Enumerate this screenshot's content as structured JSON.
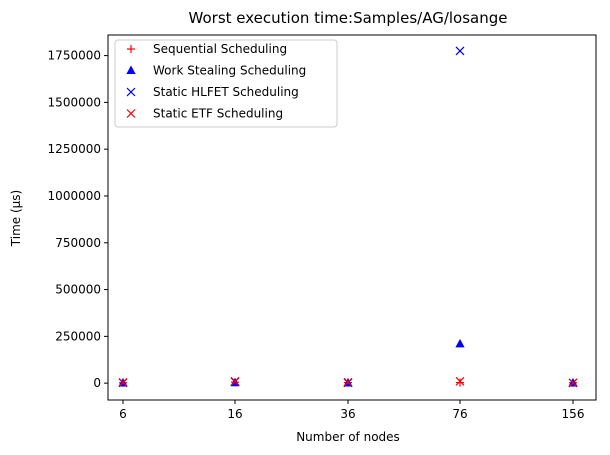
{
  "chart_data": {
    "type": "scatter",
    "title": "Worst execution time:Samples/AG/losange",
    "xlabel": "Number of nodes",
    "ylabel": "Time (µs)",
    "x_categories": [
      "6",
      "16",
      "36",
      "76",
      "156"
    ],
    "ylim": [
      -90000,
      1860000
    ],
    "yticks": [
      0,
      250000,
      500000,
      750000,
      1000000,
      1250000,
      1500000,
      1750000
    ],
    "ytick_labels": [
      "0",
      "250000",
      "500000",
      "750000",
      "1000000",
      "1250000",
      "1500000",
      "1750000"
    ],
    "grid": false,
    "legend_position": "top-left",
    "series": [
      {
        "name": "Sequential Scheduling",
        "marker": "plus",
        "color": "#ff0000",
        "values": [
          2000,
          5000,
          3000,
          3000,
          2000
        ]
      },
      {
        "name": "Work Stealing Scheduling",
        "marker": "triangle",
        "color": "#0000ff",
        "values": [
          1000,
          2000,
          1000,
          210000,
          1000
        ]
      },
      {
        "name": "Static HLFET Scheduling",
        "marker": "x",
        "color": "#0000ff",
        "values": [
          2000,
          7000,
          2000,
          1775000,
          1000
        ]
      },
      {
        "name": "Static ETF Scheduling",
        "marker": "x",
        "color": "#ff0000",
        "values": [
          4000,
          10000,
          5000,
          10000,
          2000
        ]
      }
    ]
  }
}
